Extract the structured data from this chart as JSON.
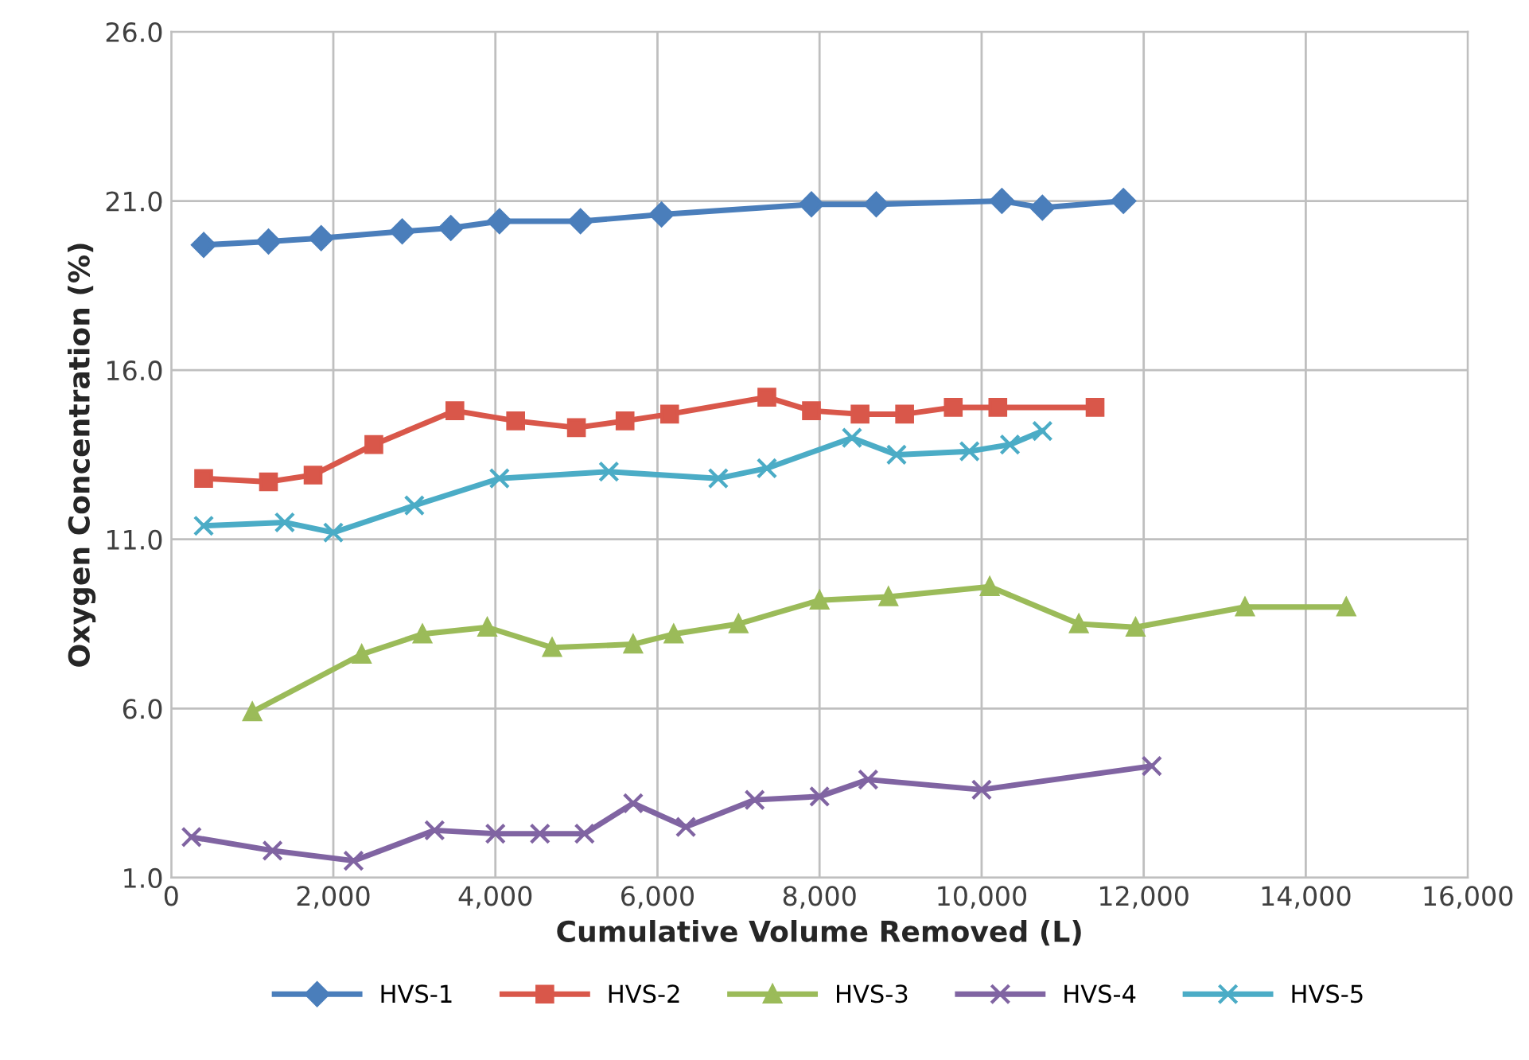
{
  "chart_data": {
    "type": "line",
    "xlabel": "Cumulative Volume Removed (L)",
    "ylabel": "Oxygen Concentration (%)",
    "xlim": [
      0,
      16000
    ],
    "ylim": [
      1,
      26
    ],
    "xticks": [
      0,
      {
        "value": 2000,
        "label": "2,000"
      },
      {
        "value": 4000,
        "label": "4,000"
      },
      {
        "value": 6000,
        "label": "6,000"
      },
      {
        "value": 8000,
        "label": "8,000"
      },
      {
        "value": 10000,
        "label": "10,000"
      },
      {
        "value": 12000,
        "label": "12,000"
      },
      {
        "value": 14000,
        "label": "14,000"
      },
      {
        "value": 16000,
        "label": "16,000"
      }
    ],
    "yticks": [
      {
        "value": 1,
        "label": "1.0"
      },
      {
        "value": 6,
        "label": "6.0"
      },
      {
        "value": 11,
        "label": "11.0"
      },
      {
        "value": 16,
        "label": "16.0"
      },
      {
        "value": 21,
        "label": "21.0"
      },
      {
        "value": 26,
        "label": "26.0"
      }
    ],
    "grid": true,
    "legend": "bottom",
    "series": [
      {
        "name": "HVS-1",
        "color": "#4a7ebb",
        "marker": "diamond",
        "x": [
          400,
          1200,
          1850,
          2850,
          3450,
          4050,
          5050,
          6050,
          7900,
          8700,
          10250,
          10750,
          11750
        ],
        "values": [
          19.7,
          19.8,
          19.9,
          20.1,
          20.2,
          20.4,
          20.4,
          20.6,
          20.9,
          20.9,
          21.0,
          20.8,
          21.0
        ]
      },
      {
        "name": "HVS-2",
        "color": "#d9574a",
        "marker": "square",
        "x": [
          400,
          1200,
          1750,
          2500,
          3500,
          4250,
          5000,
          5600,
          6150,
          7350,
          7900,
          8500,
          9050,
          9650,
          10200,
          11400
        ],
        "values": [
          12.8,
          12.7,
          12.9,
          13.8,
          14.8,
          14.5,
          14.3,
          14.5,
          14.7,
          15.2,
          14.8,
          14.7,
          14.7,
          14.9,
          14.9,
          14.9
        ]
      },
      {
        "name": "HVS-3",
        "color": "#9bbb59",
        "marker": "triangle",
        "x": [
          1000,
          2350,
          3100,
          3900,
          4700,
          5700,
          6200,
          7000,
          8000,
          8850,
          10100,
          11200,
          11900,
          13250,
          14500
        ],
        "values": [
          5.9,
          7.6,
          8.2,
          8.4,
          7.8,
          7.9,
          8.2,
          8.5,
          9.2,
          9.3,
          9.6,
          8.5,
          8.4,
          9.0,
          9.0
        ]
      },
      {
        "name": "HVS-4",
        "color": "#8064a2",
        "marker": "cross",
        "x": [
          250,
          1250,
          2250,
          3250,
          4000,
          4550,
          5100,
          5700,
          6350,
          7200,
          8000,
          8600,
          10000,
          12100
        ],
        "values": [
          2.2,
          1.8,
          1.5,
          2.4,
          2.3,
          2.3,
          2.3,
          3.2,
          2.5,
          3.3,
          3.4,
          3.9,
          3.6,
          4.3
        ]
      },
      {
        "name": "HVS-5",
        "color": "#4bacc6",
        "marker": "cross",
        "x": [
          400,
          1400,
          2000,
          3000,
          4050,
          5400,
          6750,
          7350,
          8400,
          8950,
          9850,
          10350,
          10750
        ],
        "values": [
          11.4,
          11.5,
          11.2,
          12.0,
          12.8,
          13.0,
          12.8,
          13.1,
          14.0,
          13.5,
          13.6,
          13.8,
          14.2
        ]
      }
    ]
  }
}
